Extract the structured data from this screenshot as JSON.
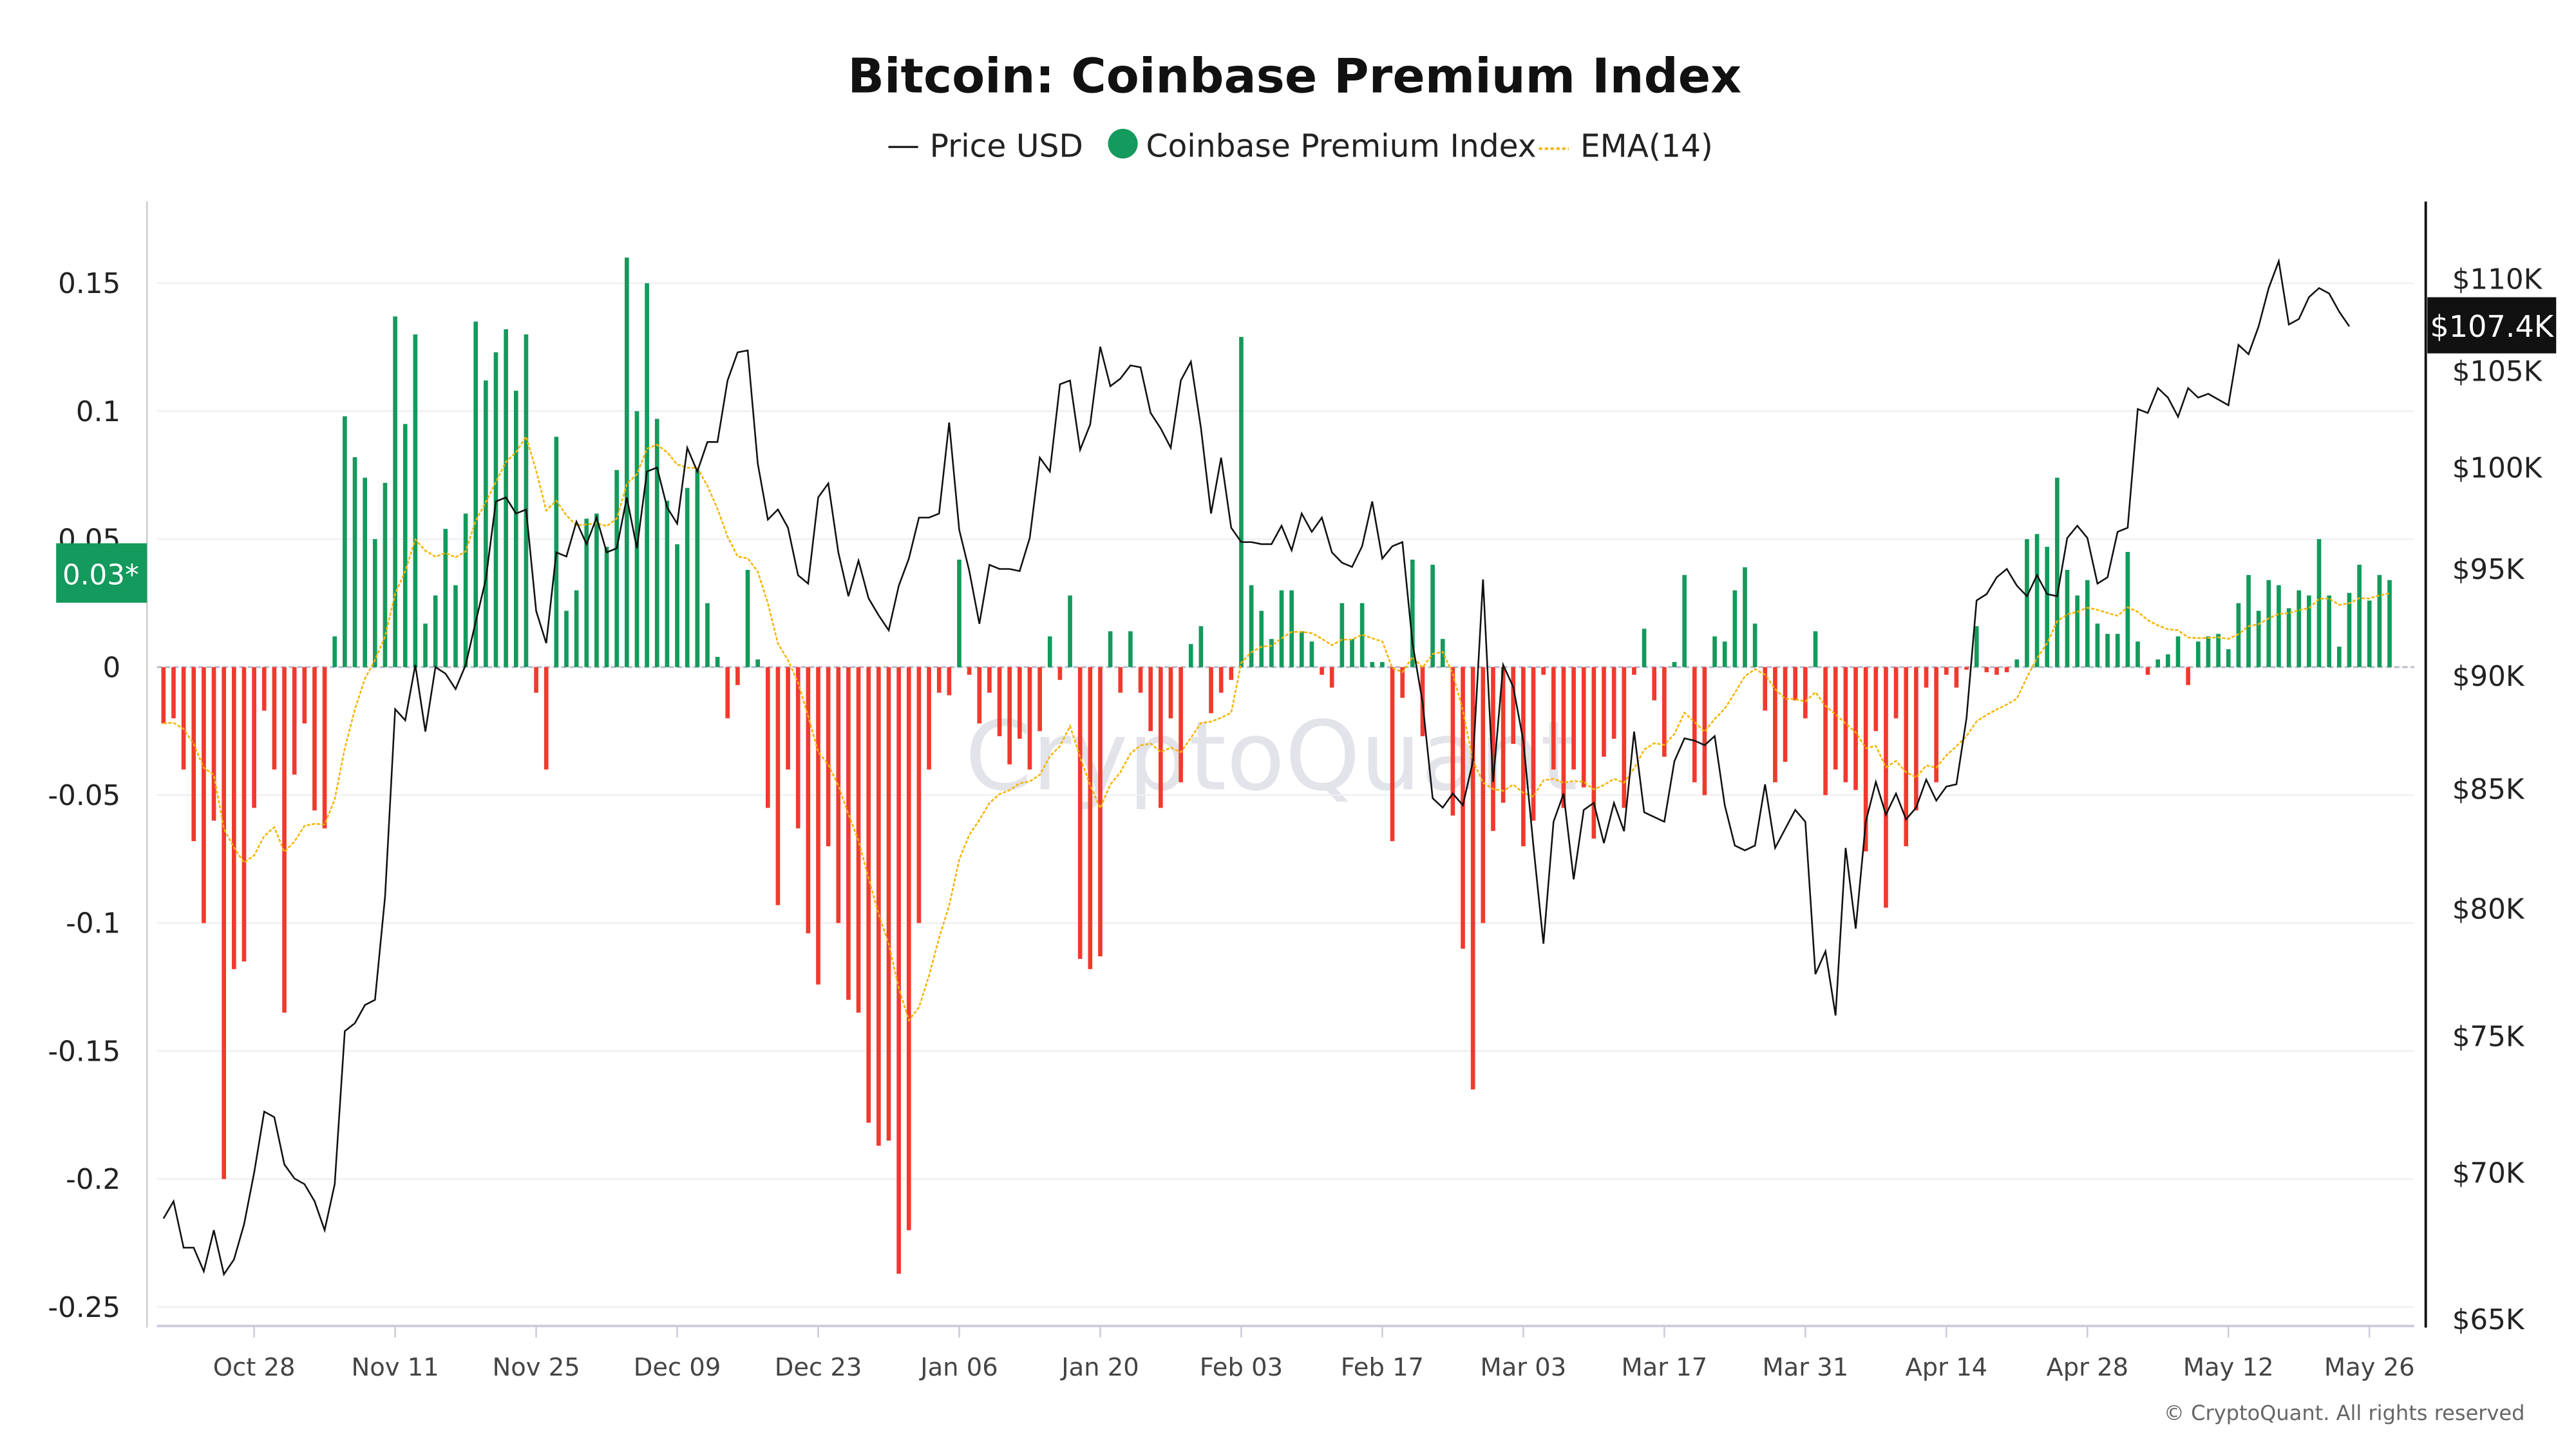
{
  "chart_data": {
    "type": "bar",
    "title": "Bitcoin: Coinbase Premium Index",
    "legend": [
      {
        "name": "Price USD",
        "color": "#111111",
        "style": "line"
      },
      {
        "name": "Coinbase Premium Index",
        "color": "#139a5c",
        "style": "dot"
      },
      {
        "name": "EMA(14)",
        "color": "#f5b400",
        "style": "dashed"
      }
    ],
    "legend_position": "top-center",
    "start_date": "2024-10-19",
    "x_ticks": [
      "Oct 28",
      "Nov 11",
      "Nov 25",
      "Dec 09",
      "Dec 23",
      "Jan 06",
      "Jan 20",
      "Feb 03",
      "Feb 17",
      "Mar 03",
      "Mar 17",
      "Mar 31",
      "Apr 14",
      "Apr 28",
      "May 12",
      "May 26"
    ],
    "x_tick_first_day_index": 9,
    "x_tick_step_days": 14,
    "left_axis": {
      "ticks": [
        0.15,
        0.1,
        0.05,
        0,
        -0.05,
        -0.1,
        -0.15,
        -0.2,
        -0.25
      ],
      "labels": [
        "0.15",
        "0.1",
        "0.05",
        "0",
        "-0.05",
        "-0.1",
        "-0.15",
        "-0.2",
        "-0.25"
      ],
      "range": [
        -0.25,
        0.15
      ]
    },
    "right_axis": {
      "scale": "log",
      "ticks": [
        110,
        105,
        100,
        95,
        90,
        85,
        80,
        75,
        70,
        65
      ],
      "labels": [
        "$110K",
        "$105K",
        "$100K",
        "$95K",
        "$90K",
        "$85K",
        "$80K",
        "$75K",
        "$70K",
        "$65K"
      ],
      "range_k": [
        65,
        110
      ]
    },
    "positive_color": "#139a5c",
    "negative_color": "#f03a2e",
    "ema_period": 14,
    "premium": [
      -0.022,
      -0.02,
      -0.04,
      -0.068,
      -0.1,
      -0.06,
      -0.2,
      -0.118,
      -0.115,
      -0.055,
      -0.017,
      -0.04,
      -0.135,
      -0.042,
      -0.022,
      -0.056,
      -0.063,
      0.012,
      0.098,
      0.082,
      0.074,
      0.05,
      0.072,
      0.137,
      0.095,
      0.13,
      0.017,
      0.028,
      0.054,
      0.032,
      0.06,
      0.135,
      0.112,
      0.123,
      0.132,
      0.108,
      0.13,
      -0.01,
      -0.04,
      0.09,
      0.022,
      0.03,
      0.058,
      0.06,
      0.047,
      0.077,
      0.16,
      0.1,
      0.15,
      0.097,
      0.065,
      0.048,
      0.07,
      0.077,
      0.025,
      0.004,
      -0.02,
      -0.007,
      0.038,
      0.003,
      -0.055,
      -0.093,
      -0.04,
      -0.063,
      -0.104,
      -0.124,
      -0.07,
      -0.1,
      -0.13,
      -0.135,
      -0.178,
      -0.187,
      -0.185,
      -0.237,
      -0.22,
      -0.1,
      -0.04,
      -0.01,
      -0.011,
      0.042,
      -0.003,
      -0.022,
      -0.01,
      -0.027,
      -0.038,
      -0.028,
      -0.04,
      -0.025,
      0.012,
      -0.005,
      0.028,
      -0.114,
      -0.118,
      -0.113,
      0.014,
      -0.01,
      0.014,
      -0.01,
      -0.025,
      -0.055,
      -0.02,
      -0.045,
      0.009,
      0.016,
      -0.018,
      -0.01,
      -0.005,
      0.129,
      0.032,
      0.022,
      0.011,
      0.03,
      0.03,
      0.014,
      0.01,
      -0.003,
      -0.008,
      0.025,
      0.011,
      0.025,
      0.002,
      0.002,
      -0.068,
      -0.012,
      0.042,
      -0.027,
      0.04,
      0.011,
      -0.058,
      -0.11,
      -0.165,
      -0.1,
      -0.064,
      -0.053,
      -0.03,
      -0.07,
      -0.06,
      -0.003,
      -0.04,
      -0.055,
      -0.04,
      -0.047,
      -0.067,
      -0.035,
      -0.028,
      -0.055,
      -0.003,
      0.015,
      -0.013,
      -0.035,
      0.002,
      0.036,
      -0.045,
      -0.05,
      0.012,
      0.01,
      0.03,
      0.039,
      0.017,
      -0.017,
      -0.045,
      -0.037,
      -0.013,
      -0.02,
      0.014,
      -0.05,
      -0.04,
      -0.045,
      -0.048,
      -0.072,
      -0.025,
      -0.094,
      -0.02,
      -0.07,
      -0.056,
      -0.008,
      -0.045,
      -0.003,
      -0.008,
      -0.001,
      0.016,
      -0.002,
      -0.003,
      -0.002,
      0.003,
      0.05,
      0.052,
      0.047,
      0.074,
      0.038,
      0.028,
      0.034,
      0.017,
      0.013,
      0.013,
      0.045,
      0.01,
      -0.003,
      0.003,
      0.005,
      0.012,
      -0.007,
      0.01,
      0.012,
      0.013,
      0.007,
      0.025,
      0.036,
      0.022,
      0.034,
      0.032,
      0.023,
      0.03,
      0.028,
      0.05,
      0.028,
      0.008,
      0.029,
      0.04,
      0.026,
      0.036,
      0.034
    ],
    "price_k": [
      68.4,
      69,
      67.4,
      67.4,
      66.6,
      68,
      66.5,
      67,
      68.2,
      70,
      72.2,
      72,
      70.3,
      69.8,
      69.6,
      69,
      68,
      69.6,
      75.2,
      75.5,
      76.2,
      76.4,
      80.5,
      88.5,
      88,
      90.5,
      87.5,
      90.4,
      90.1,
      89.4,
      90.5,
      92.5,
      94.5,
      98.3,
      98.5,
      97.7,
      97.9,
      93,
      91.5,
      95.8,
      95.6,
      97.3,
      96.2,
      97.5,
      95.8,
      96,
      98.5,
      96,
      99.8,
      100,
      98,
      97.2,
      101,
      99.8,
      101.3,
      101.3,
      104.5,
      106,
      106.1,
      100.2,
      97.4,
      97.9,
      97,
      94.7,
      94.3,
      98.5,
      99.2,
      95.8,
      93.7,
      95.4,
      93.6,
      92.8,
      92.1,
      94.2,
      95.5,
      97.5,
      97.5,
      97.7,
      102.3,
      96.9,
      94.9,
      92.4,
      95.2,
      95,
      95,
      94.9,
      96.5,
      100.5,
      99.8,
      104.3,
      104.5,
      100.9,
      102.2,
      106.3,
      104.2,
      104.6,
      105.3,
      105.2,
      102.8,
      102,
      101,
      104.5,
      105.5,
      102,
      97.7,
      100.5,
      97,
      96.3,
      96.3,
      96.2,
      96.2,
      97.1,
      95.9,
      97.7,
      96.8,
      97.5,
      95.8,
      95.3,
      95.1,
      96.1,
      98.3,
      95.5,
      96.1,
      96.3,
      91.5,
      88.8,
      84.6,
      84.2,
      84.8,
      84.3,
      86.2,
      94.5,
      85.3,
      90.5,
      89.5,
      87.1,
      82.6,
      78.6,
      83.6,
      84.8,
      81.2,
      84.1,
      84.4,
      82.7,
      84.4,
      83.2,
      87.5,
      84,
      83.8,
      83.6,
      86.2,
      87.2,
      87.1,
      86.9,
      87.3,
      84.3,
      82.6,
      82.4,
      82.6,
      85.2,
      82.5,
      83.3,
      84.1,
      83.6,
      77.4,
      78.3,
      75.8,
      82.5,
      79.2,
      83.6,
      85.3,
      83.9,
      84.8,
      83.7,
      84.2,
      85.4,
      84.5,
      85.1,
      85.2,
      88.1,
      93.5,
      93.8,
      94.6,
      95,
      94.2,
      93.7,
      94.7,
      93.8,
      93.7,
      96.5,
      97.1,
      96.5,
      94.3,
      94.6,
      96.8,
      97,
      103,
      102.8,
      104.1,
      103.6,
      102.6,
      104.1,
      103.6,
      103.8,
      103.5,
      103.2,
      106.4,
      105.9,
      107.4,
      109.5,
      111,
      107.5,
      107.8,
      109,
      109.5,
      109.2,
      108.2,
      107.4
    ],
    "last_premium_label": "0.03*",
    "last_price_label": "$107.4K",
    "watermark": "CryptoQuant",
    "footer": "© CryptoQuant. All rights reserved"
  }
}
